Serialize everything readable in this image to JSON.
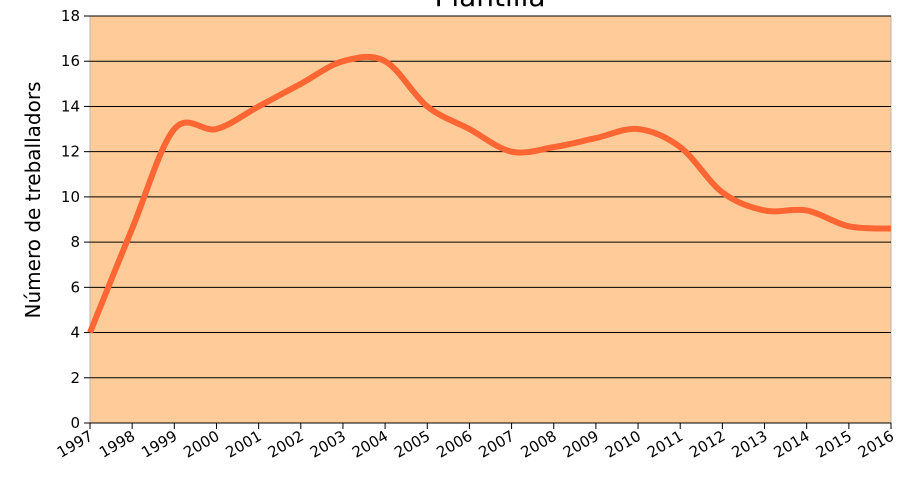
{
  "chart_data": {
    "type": "line",
    "title": "Plantilla",
    "y_label": "Número de treballadors",
    "categories": [
      "1997",
      "1998",
      "1999",
      "2000",
      "2001",
      "2002",
      "2003",
      "2004",
      "2005",
      "2006",
      "2007",
      "2008",
      "2009",
      "2010",
      "2011",
      "2012",
      "2013",
      "2014",
      "2015",
      "2016"
    ],
    "series": [
      {
        "name": "Plantilla",
        "color": "#ff6633",
        "values": [
          4,
          8.6,
          13,
          13,
          14,
          15,
          16,
          16,
          14,
          13,
          12,
          12.2,
          12.6,
          13,
          12.2,
          10.2,
          9.4,
          9.4,
          8.7,
          8.6
        ]
      }
    ],
    "ylim": [
      0,
      18
    ],
    "yticks": [
      0,
      2,
      4,
      6,
      8,
      10,
      12,
      14,
      16,
      18
    ],
    "grid": true,
    "plot_background": "#ffcc99"
  }
}
